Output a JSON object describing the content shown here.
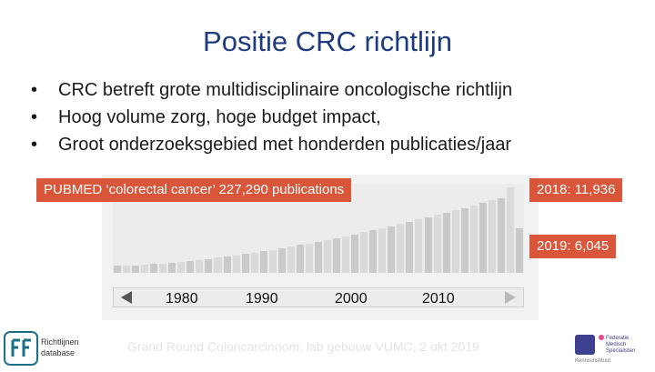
{
  "slide": {
    "title": "Positie CRC richtlijn",
    "bullets": [
      "CRC betreft grote multidisciplinaire oncologische richtlijn",
      "Hoog volume zorg, hoge budget impact,",
      "Groot onderzoeksgebied met honderden publicaties/jaar"
    ],
    "bullet_symbol": "•"
  },
  "chart": {
    "callout_main": "PUBMED ‘colorectal cancer’ 227,290 publications",
    "callout_2018": "2018: 11,936",
    "callout_2019": "2019: 6,045",
    "year_labels": [
      "1980",
      "1990",
      "2000",
      "2010"
    ],
    "colors": {
      "callout": "#d9563b",
      "bar": "#c9c9c9",
      "background": "#f2f2f2"
    }
  },
  "footer": {
    "text": "Grand Round Coloncarcinoom, lab gebouw VUMC, 2 okt 2019"
  },
  "logos": {
    "left": {
      "line1": "Richtlijnen",
      "line2": "database"
    },
    "right": {
      "line1": "Federatie",
      "line2": "Medisch",
      "line3": "Specialisten",
      "line4": "Kennisinstituut"
    }
  }
}
